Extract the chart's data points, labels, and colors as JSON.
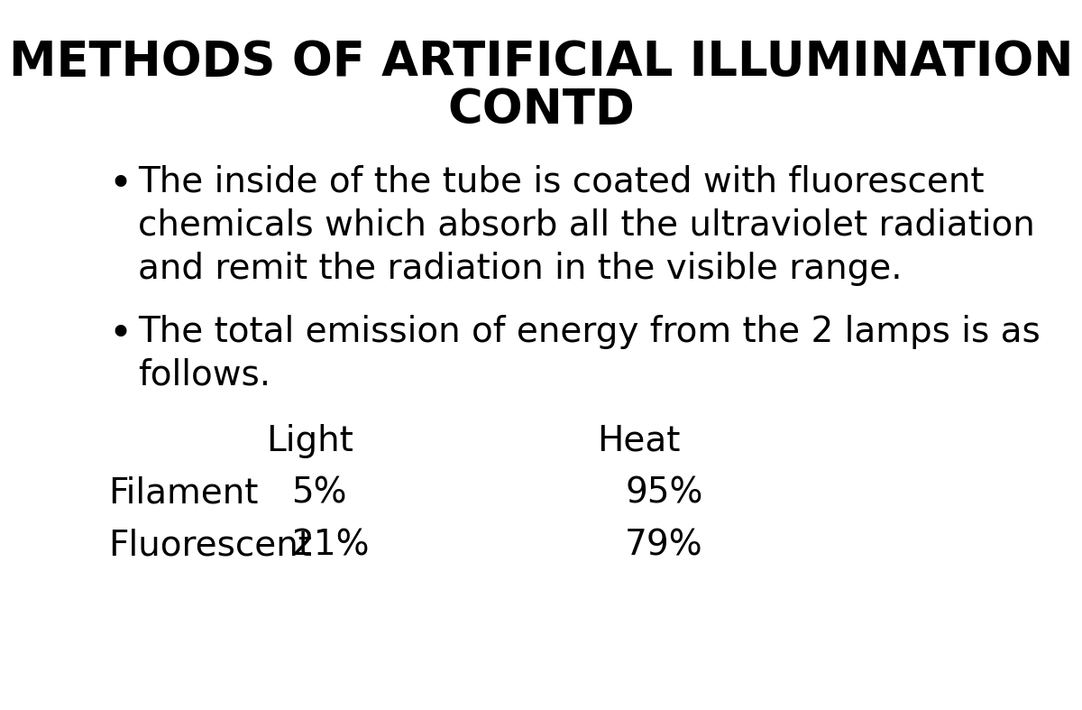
{
  "title_line1": "METHODS OF ARTIFICIAL ILLUMINATION",
  "title_line2": "CONTD",
  "bullet1_lines": [
    "The inside of the tube is coated with fluorescent",
    "chemicals which absorb all the ultraviolet radiation",
    "and remit the radiation in the visible range."
  ],
  "bullet2_lines": [
    "The total emission of energy from the 2 lamps is as",
    "follows."
  ],
  "table_header_col1": "Light",
  "table_header_col2": "Heat",
  "table_row1_label": "Filament",
  "table_row1_col1": "5%",
  "table_row1_col2": "95%",
  "table_row2_label": "Fluorescent",
  "table_row2_col1": "21%",
  "table_row2_col2": "79%",
  "bg_color": "#ffffff",
  "text_color": "#000000",
  "title_fontsize": 38,
  "bullet_fontsize": 28,
  "table_fontsize": 28
}
